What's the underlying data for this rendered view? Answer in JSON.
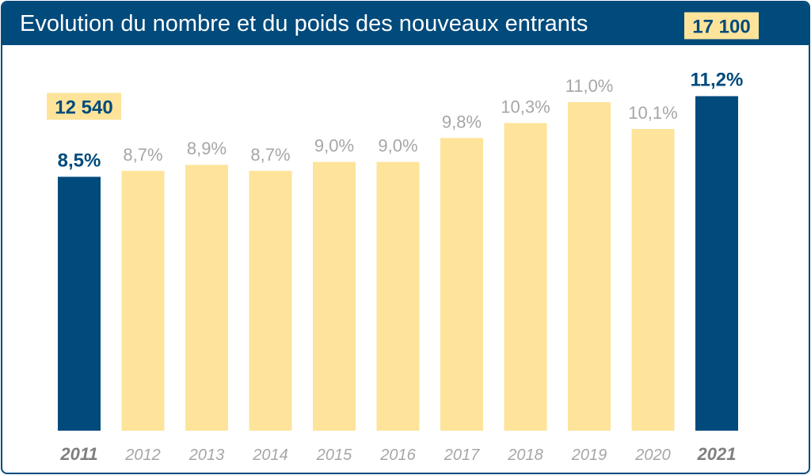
{
  "header": {
    "title": "Evolution du nombre et du poids des nouveaux entrants"
  },
  "colors": {
    "frame": "#004a7c",
    "highlight_bar": "#004a7c",
    "regular_bar": "#fde49a",
    "regular_label": "#a6a6a6",
    "highlight_label": "#004a7c",
    "count_box": "#fde49a"
  },
  "chart_data": {
    "type": "bar",
    "title": "Evolution du nombre et du poids des nouveaux entrants",
    "xlabel": "",
    "ylabel": "",
    "categories": [
      "2011",
      "2012",
      "2013",
      "2014",
      "2015",
      "2016",
      "2017",
      "2018",
      "2019",
      "2020",
      "2021"
    ],
    "values": [
      8.5,
      8.7,
      8.9,
      8.7,
      9.0,
      9.0,
      9.8,
      10.3,
      11.0,
      10.1,
      11.2
    ],
    "value_labels": [
      "8,5%",
      "8,7%",
      "8,9%",
      "8,7%",
      "9,0%",
      "9,0%",
      "9,8%",
      "10,3%",
      "11,0%",
      "10,1%",
      "11,2%"
    ],
    "highlighted": [
      "2011",
      "2021"
    ],
    "counts": [
      {
        "category": "2011",
        "label": "12 540"
      },
      {
        "category": "2021",
        "label": "17 100"
      }
    ],
    "ylim": [
      0,
      12.75
    ],
    "grid": false,
    "legend": "none"
  }
}
